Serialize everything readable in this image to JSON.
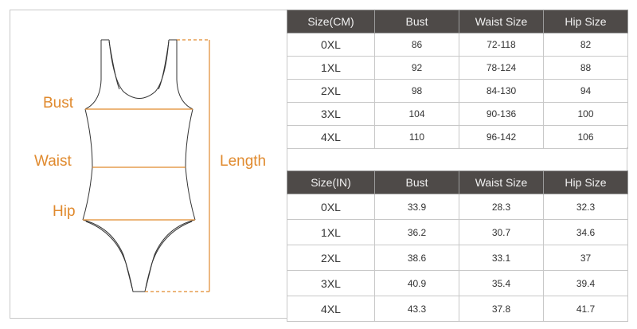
{
  "colors": {
    "accent": "#e08a2e",
    "header_bg": "#4e4a48"
  },
  "figure": {
    "labels": {
      "bust": "Bust",
      "waist": "Waist",
      "hip": "Hip",
      "length": "Length"
    }
  },
  "cm_table": {
    "headers": [
      "Size(CM)",
      "Bust",
      "Waist Size",
      "Hip Size"
    ],
    "rows": [
      [
        "0XL",
        "86",
        "72-118",
        "82"
      ],
      [
        "1XL",
        "92",
        "78-124",
        "88"
      ],
      [
        "2XL",
        "98",
        "84-130",
        "94"
      ],
      [
        "3XL",
        "104",
        "90-136",
        "100"
      ],
      [
        "4XL",
        "110",
        "96-142",
        "106"
      ]
    ]
  },
  "in_table": {
    "headers": [
      "Size(IN)",
      "Bust",
      "Waist Size",
      "Hip Size"
    ],
    "rows": [
      [
        "0XL",
        "33.9",
        "28.3",
        "32.3"
      ],
      [
        "1XL",
        "36.2",
        "30.7",
        "34.6"
      ],
      [
        "2XL",
        "38.6",
        "33.1",
        "37"
      ],
      [
        "3XL",
        "40.9",
        "35.4",
        "39.4"
      ],
      [
        "4XL",
        "43.3",
        "37.8",
        "41.7"
      ]
    ]
  }
}
